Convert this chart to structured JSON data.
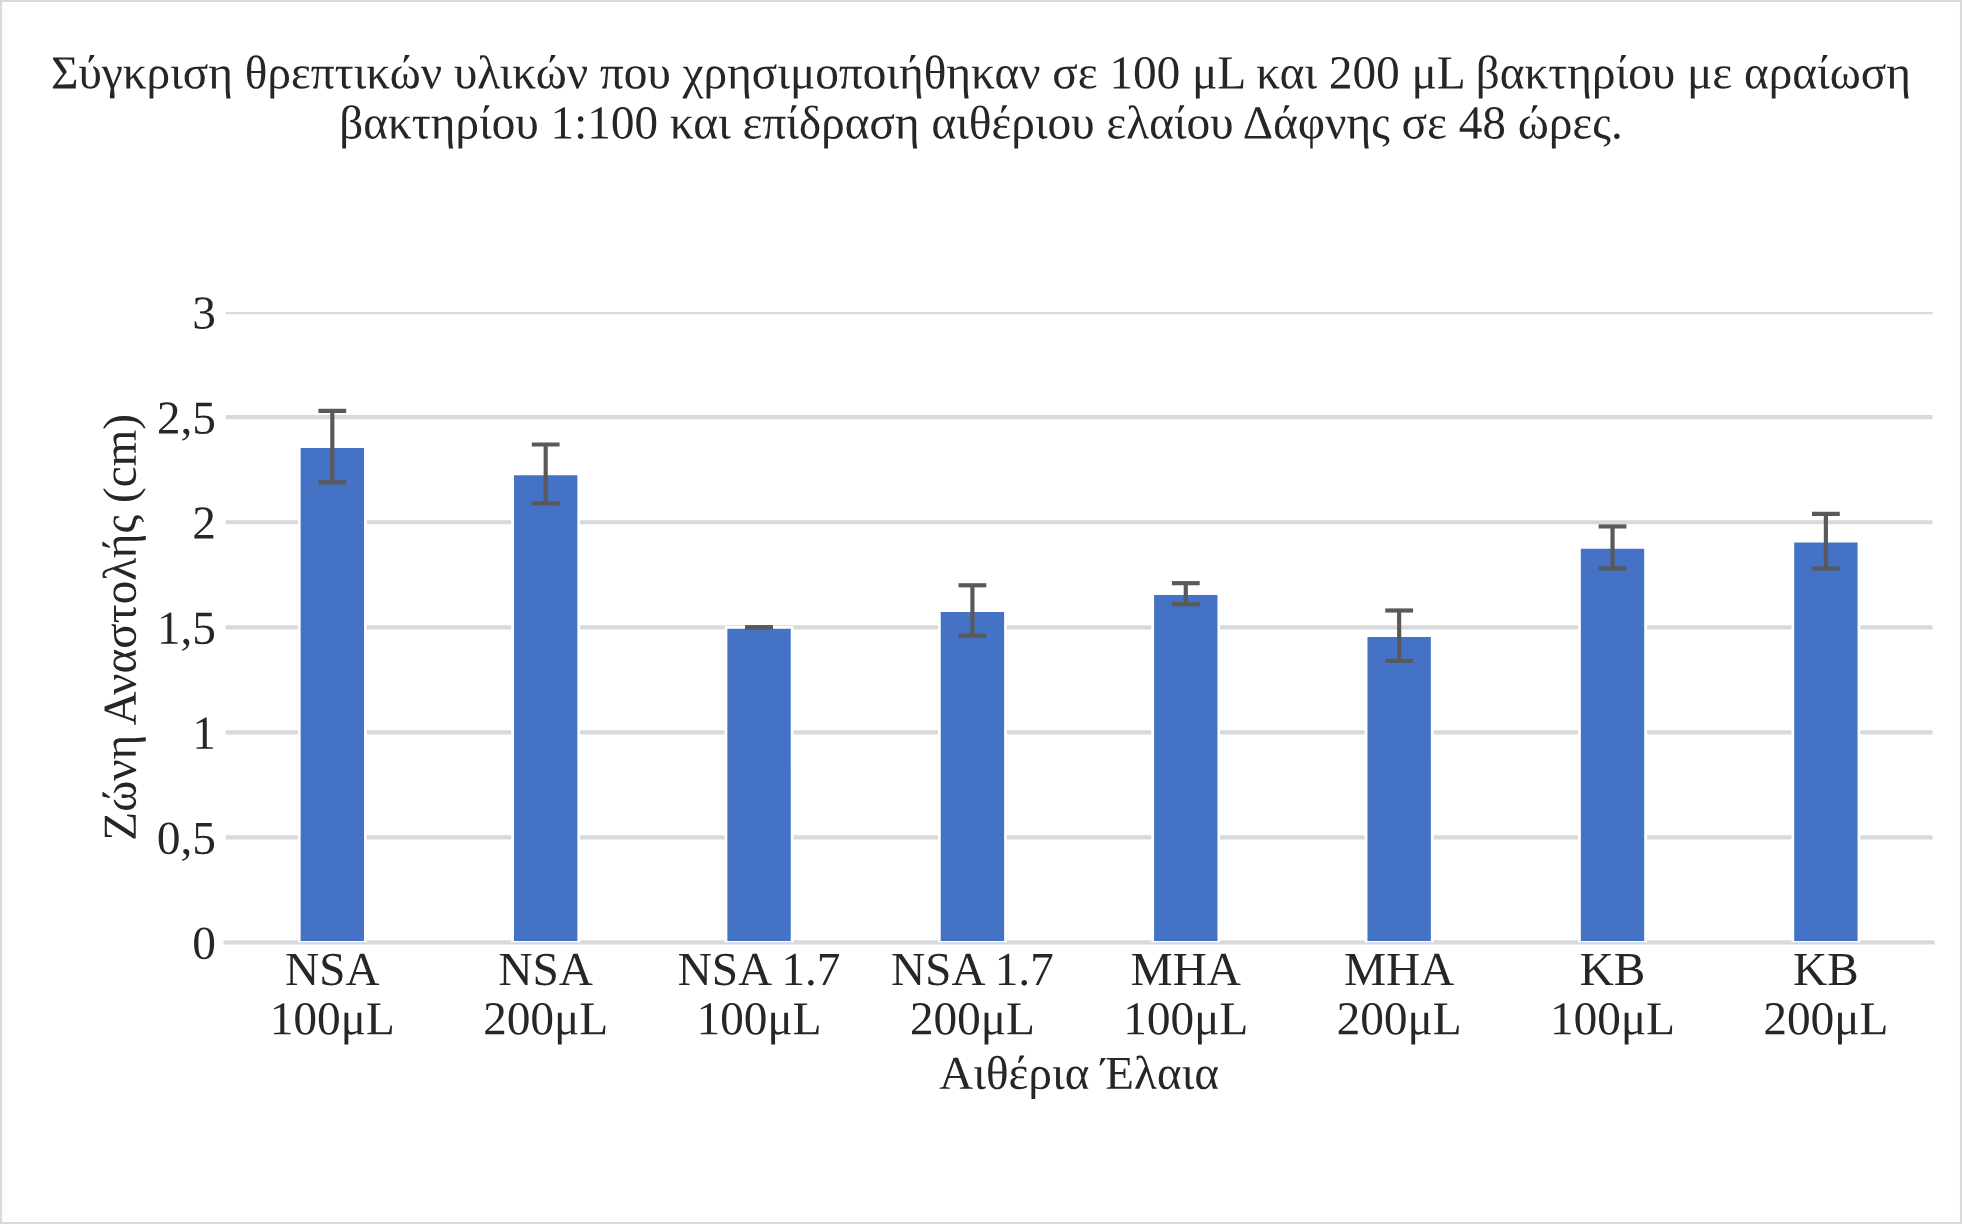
{
  "chart_data": {
    "type": "bar",
    "title": "Σύγκριση θρεπτικών υλικών που χρησιμοποιήθηκαν σε 100 μL και 200 μL βακτηρίου με αραίωση βακτηρίου 1:100 και επίδραση αιθέριου ελαίου Δάφνης σε 48 ώρες.",
    "xlabel": "Αιθέρια Έλαια",
    "ylabel": "Ζώνη Αναστολής (cm)",
    "categories": [
      "NSA\n100μL",
      "NSA\n200μL",
      "NSA 1.7\n100μL",
      "NSA 1.7\n200μL",
      "MHA\n100μL",
      "MHA\n200μL",
      "KB\n100μL",
      "KB\n200μL"
    ],
    "values": [
      2.36,
      2.23,
      1.5,
      1.58,
      1.66,
      1.46,
      1.88,
      1.91
    ],
    "errors": [
      0.17,
      0.14,
      0,
      0.12,
      0.05,
      0.12,
      0.1,
      0.13
    ],
    "color": "#4472c4",
    "ylim": [
      0,
      3
    ],
    "yticks": [
      {
        "value": 0,
        "label": "0"
      },
      {
        "value": 0.5,
        "label": "0,5"
      },
      {
        "value": 1,
        "label": "1"
      },
      {
        "value": 1.5,
        "label": "1,5"
      },
      {
        "value": 2,
        "label": "2"
      },
      {
        "value": 2.5,
        "label": "2,5"
      },
      {
        "value": 3,
        "label": "3"
      }
    ],
    "grid": "y"
  }
}
